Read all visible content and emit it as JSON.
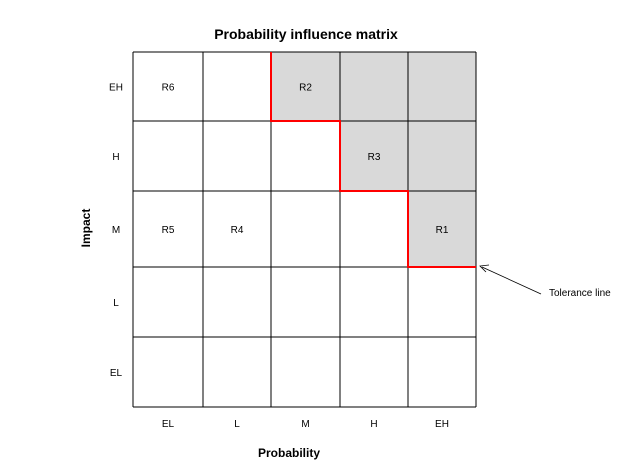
{
  "chart_data": {
    "type": "heatmap",
    "title": "Probability influence matrix",
    "xlabel": "Probability",
    "ylabel": "Impact",
    "x_categories": [
      "EL",
      "L",
      "M",
      "H",
      "EH"
    ],
    "y_categories": [
      "EH",
      "H",
      "M",
      "L",
      "EL"
    ],
    "shaded_cells": [
      {
        "impact": "EH",
        "probability": "M"
      },
      {
        "impact": "EH",
        "probability": "H"
      },
      {
        "impact": "EH",
        "probability": "EH"
      },
      {
        "impact": "H",
        "probability": "H"
      },
      {
        "impact": "H",
        "probability": "EH"
      },
      {
        "impact": "M",
        "probability": "EH"
      }
    ],
    "risks": [
      {
        "label": "R6",
        "impact": "EH",
        "probability": "EL"
      },
      {
        "label": "R2",
        "impact": "EH",
        "probability": "M"
      },
      {
        "label": "R3",
        "impact": "H",
        "probability": "H"
      },
      {
        "label": "R5",
        "impact": "M",
        "probability": "EL"
      },
      {
        "label": "R4",
        "impact": "M",
        "probability": "L"
      },
      {
        "label": "R1",
        "impact": "M",
        "probability": "EH"
      }
    ],
    "tolerance_line": {
      "label": "Tolerance line",
      "color": "#ff0000",
      "steps": [
        {
          "probability_from": "M",
          "impact_top": "EH"
        },
        {
          "probability_from": "H",
          "impact_top": "H"
        },
        {
          "probability_from": "EH",
          "impact_top": "M"
        }
      ]
    },
    "colors": {
      "shade": "#d9d9d9",
      "grid": "#000000",
      "tolerance": "#ff0000"
    }
  }
}
